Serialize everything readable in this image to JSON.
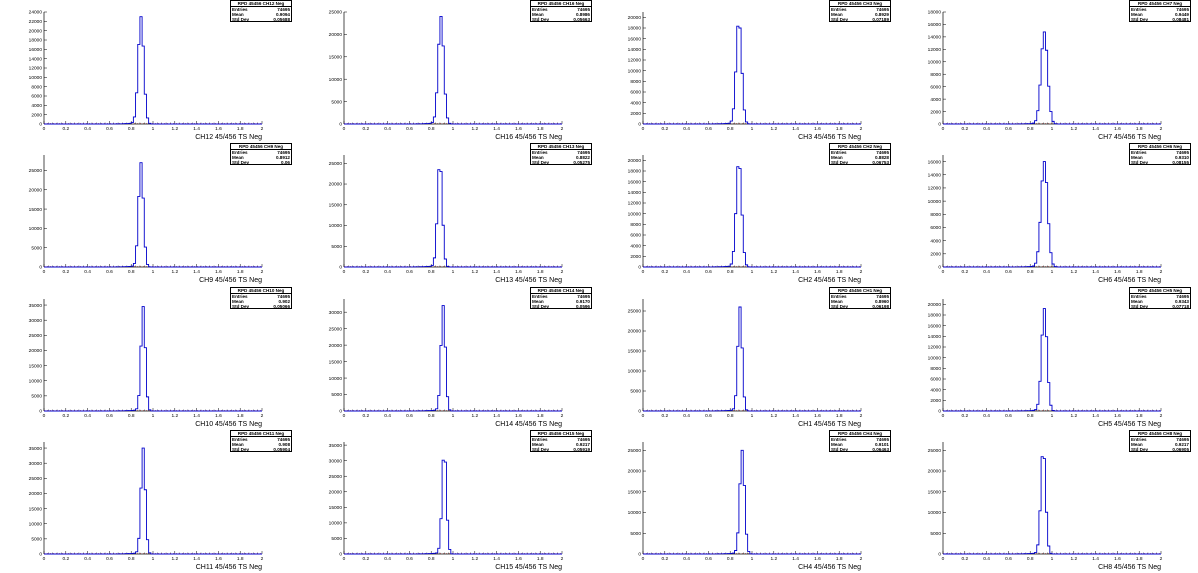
{
  "colors": {
    "histogram": "#0000cc",
    "axis": "#000000",
    "background": "#ffffff",
    "faint_line": "#cc3333"
  },
  "stats_labels": {
    "entries": "Entries",
    "mean": "Mean",
    "std": "Std Dev"
  },
  "chart_data": [
    {
      "type": "bar",
      "title": "RPD 45456 CH12 Neg",
      "xlabel": "CH12 45/456 TS Neg",
      "xlim": [
        0,
        2
      ],
      "ylim": [
        0,
        24000
      ],
      "xticks": [
        "0",
        "0.2",
        "0.4",
        "0.6",
        "0.8",
        "1",
        "1.2",
        "1.4",
        "1.6",
        "1.8",
        "2"
      ],
      "yticks": [
        "0",
        "2000",
        "4000",
        "6000",
        "8000",
        "10000",
        "12000",
        "14000",
        "16000",
        "18000",
        "20000",
        "22000",
        "24000"
      ],
      "stats": {
        "entries": "74695",
        "mean": "0.9094",
        "std": "0.05688"
      },
      "peak": 23000,
      "peak_x": 0.89,
      "width": 0.025
    },
    {
      "type": "bar",
      "title": "RPD 45456 CH16 Neg",
      "xlabel": "CH16 45/456 TS Neg",
      "xlim": [
        0,
        2
      ],
      "ylim": [
        0,
        25000
      ],
      "xticks": [
        "0",
        "0.2",
        "0.4",
        "0.6",
        "0.8",
        "1",
        "1.2",
        "1.4",
        "1.6",
        "1.8",
        "2"
      ],
      "yticks": [
        "0",
        "5000",
        "10000",
        "15000",
        "20000",
        "25000"
      ],
      "stats": {
        "entries": "74695",
        "mean": "0.8986",
        "std": "0.05663"
      },
      "peak": 24000,
      "peak_x": 0.89,
      "width": 0.025
    },
    {
      "type": "bar",
      "title": "RPD 45456 CH3 Neg",
      "xlabel": "CH3 45/456 TS Neg",
      "xlim": [
        0,
        2
      ],
      "ylim": [
        0,
        21000
      ],
      "xticks": [
        "0",
        "0.2",
        "0.4",
        "0.6",
        "0.8",
        "1",
        "1.2",
        "1.4",
        "1.6",
        "1.8",
        "2"
      ],
      "yticks": [
        "0",
        "2000",
        "4000",
        "6000",
        "8000",
        "10000",
        "12000",
        "14000",
        "16000",
        "18000",
        "20000"
      ],
      "stats": {
        "entries": "74695",
        "mean": "0.8929",
        "std": "0.07189"
      },
      "peak": 19500,
      "peak_x": 0.88,
      "width": 0.025
    },
    {
      "type": "bar",
      "title": "RPD 45456 CH7 Neg",
      "xlabel": "CH7 45/456 TS Neg",
      "xlim": [
        0,
        2
      ],
      "ylim": [
        0,
        18000
      ],
      "xticks": [
        "0",
        "0.2",
        "0.4",
        "0.6",
        "0.8",
        "1",
        "1.2",
        "1.4",
        "1.6",
        "1.8",
        "2"
      ],
      "yticks": [
        "0",
        "2000",
        "4000",
        "6000",
        "8000",
        "10000",
        "12000",
        "14000",
        "16000",
        "18000"
      ],
      "stats": {
        "entries": "74695",
        "mean": "0.9449",
        "std": "0.08481"
      },
      "peak": 14800,
      "peak_x": 0.93,
      "width": 0.03
    },
    {
      "type": "bar",
      "title": "RPD 45456 CH9 Neg",
      "xlabel": "CH9 45/456 TS Neg",
      "xlim": [
        0,
        2
      ],
      "ylim": [
        0,
        29000
      ],
      "xticks": [
        "0",
        "0.2",
        "0.4",
        "0.6",
        "0.8",
        "1",
        "1.2",
        "1.4",
        "1.6",
        "1.8",
        "2"
      ],
      "yticks": [
        "0",
        "5000",
        "10000",
        "15000",
        "20000",
        "25000"
      ],
      "stats": {
        "entries": "74695",
        "mean": "0.8912",
        "std": "0.06"
      },
      "peak": 27000,
      "peak_x": 0.89,
      "width": 0.022
    },
    {
      "type": "bar",
      "title": "RPD 45456 CH13 Neg",
      "xlabel": "CH13 45/456 TS Neg",
      "xlim": [
        0,
        2
      ],
      "ylim": [
        0,
        27000
      ],
      "xticks": [
        "0",
        "0.2",
        "0.4",
        "0.6",
        "0.8",
        "1",
        "1.2",
        "1.4",
        "1.6",
        "1.8",
        "2"
      ],
      "yticks": [
        "0",
        "5000",
        "10000",
        "15000",
        "20000",
        "25000"
      ],
      "stats": {
        "entries": "74695",
        "mean": "0.8822",
        "std": "0.05275"
      },
      "peak": 25500,
      "peak_x": 0.88,
      "width": 0.022
    },
    {
      "type": "bar",
      "title": "RPD 45456 CH2 Neg",
      "xlabel": "CH2 45/456 TS Neg",
      "xlim": [
        0,
        2
      ],
      "ylim": [
        0,
        21000
      ],
      "xticks": [
        "0",
        "0.2",
        "0.4",
        "0.6",
        "0.8",
        "1",
        "1.2",
        "1.4",
        "1.6",
        "1.8",
        "2"
      ],
      "yticks": [
        "0",
        "2000",
        "4000",
        "6000",
        "8000",
        "10000",
        "12000",
        "14000",
        "16000",
        "18000",
        "20000"
      ],
      "stats": {
        "entries": "74695",
        "mean": "0.8828",
        "std": "0.06753"
      },
      "peak": 20000,
      "peak_x": 0.88,
      "width": 0.025
    },
    {
      "type": "bar",
      "title": "RPD 45456 CH6 Neg",
      "xlabel": "CH6 45/456 TS Neg",
      "xlim": [
        0,
        2
      ],
      "ylim": [
        0,
        17000
      ],
      "xticks": [
        "0",
        "0.2",
        "0.4",
        "0.6",
        "0.8",
        "1",
        "1.2",
        "1.4",
        "1.6",
        "1.8",
        "2"
      ],
      "yticks": [
        "0",
        "2000",
        "4000",
        "6000",
        "8000",
        "10000",
        "12000",
        "14000",
        "16000"
      ],
      "stats": {
        "entries": "74695",
        "mean": "0.9310",
        "std": "0.08155"
      },
      "peak": 16000,
      "peak_x": 0.93,
      "width": 0.03
    },
    {
      "type": "bar",
      "title": "RPD 45456 CH10 Neg",
      "xlabel": "CH10 45/456 TS Neg",
      "xlim": [
        0,
        2
      ],
      "ylim": [
        0,
        37000
      ],
      "xticks": [
        "0",
        "0.2",
        "0.4",
        "0.6",
        "0.8",
        "1",
        "1.2",
        "1.4",
        "1.6",
        "1.8",
        "2"
      ],
      "yticks": [
        "0",
        "5000",
        "10000",
        "15000",
        "20000",
        "25000",
        "30000",
        "35000"
      ],
      "stats": {
        "entries": "74695",
        "mean": "0.902",
        "std": "0.05066"
      },
      "peak": 34500,
      "peak_x": 0.91,
      "width": 0.02
    },
    {
      "type": "bar",
      "title": "RPD 45456 CH14 Neg",
      "xlabel": "CH14 45/456 TS Neg",
      "xlim": [
        0,
        2
      ],
      "ylim": [
        0,
        34000
      ],
      "xticks": [
        "0",
        "0.2",
        "0.4",
        "0.6",
        "0.8",
        "1",
        "1.2",
        "1.4",
        "1.6",
        "1.8",
        "2"
      ],
      "yticks": [
        "0",
        "5000",
        "10000",
        "15000",
        "20000",
        "25000",
        "30000"
      ],
      "stats": {
        "entries": "74695",
        "mean": "0.9170",
        "std": "0.0596"
      },
      "peak": 32000,
      "peak_x": 0.91,
      "width": 0.02
    },
    {
      "type": "bar",
      "title": "RPD 45456 CH1 Neg",
      "xlabel": "CH1 45/456 TS Neg",
      "xlim": [
        0,
        2
      ],
      "ylim": [
        0,
        28000
      ],
      "xticks": [
        "0",
        "0.2",
        "0.4",
        "0.6",
        "0.8",
        "1",
        "1.2",
        "1.4",
        "1.6",
        "1.8",
        "2"
      ],
      "yticks": [
        "0",
        "5000",
        "10000",
        "15000",
        "20000",
        "25000"
      ],
      "stats": {
        "entries": "74695",
        "mean": "0.8960",
        "std": "0.06198"
      },
      "peak": 26000,
      "peak_x": 0.89,
      "width": 0.02
    },
    {
      "type": "bar",
      "title": "RPD 45456 CH5 Neg",
      "xlabel": "CH5 45/456 TS Neg",
      "xlim": [
        0,
        2
      ],
      "ylim": [
        0,
        21000
      ],
      "xticks": [
        "0",
        "0.2",
        "0.4",
        "0.6",
        "0.8",
        "1",
        "1.2",
        "1.4",
        "1.6",
        "1.8",
        "2"
      ],
      "yticks": [
        "0",
        "2000",
        "4000",
        "6000",
        "8000",
        "10000",
        "12000",
        "14000",
        "16000",
        "18000",
        "20000"
      ],
      "stats": {
        "entries": "74695",
        "mean": "0.9343",
        "std": "0.07718"
      },
      "peak": 19200,
      "peak_x": 0.93,
      "width": 0.025
    },
    {
      "type": "bar",
      "title": "RPD 45456 CH11 Neg",
      "xlabel": "CH11 45/456 TS Neg",
      "xlim": [
        0,
        2
      ],
      "ylim": [
        0,
        37000
      ],
      "xticks": [
        "0",
        "0.2",
        "0.4",
        "0.6",
        "0.8",
        "1",
        "1.2",
        "1.4",
        "1.6",
        "1.8",
        "2"
      ],
      "yticks": [
        "0",
        "5000",
        "10000",
        "15000",
        "20000",
        "25000",
        "30000",
        "35000"
      ],
      "stats": {
        "entries": "74695",
        "mean": "0.908",
        "std": "0.05904"
      },
      "peak": 35000,
      "peak_x": 0.91,
      "width": 0.02
    },
    {
      "type": "bar",
      "title": "RPD 45456 CH15 Neg",
      "xlabel": "CH15 45/456 TS Neg",
      "xlim": [
        0,
        2
      ],
      "ylim": [
        0,
        36000
      ],
      "xticks": [
        "0",
        "0.2",
        "0.4",
        "0.6",
        "0.8",
        "1",
        "1.2",
        "1.4",
        "1.6",
        "1.8",
        "2"
      ],
      "yticks": [
        "0",
        "5000",
        "10000",
        "15000",
        "20000",
        "25000",
        "30000",
        "35000"
      ],
      "stats": {
        "entries": "74695",
        "mean": "0.9217",
        "std": "0.05919"
      },
      "peak": 33500,
      "peak_x": 0.92,
      "width": 0.02
    },
    {
      "type": "bar",
      "title": "RPD 45456 CH4 Neg",
      "xlabel": "CH4 45/456 TS Neg",
      "xlim": [
        0,
        2
      ],
      "ylim": [
        0,
        27000
      ],
      "xticks": [
        "0",
        "0.2",
        "0.4",
        "0.6",
        "0.8",
        "1",
        "1.2",
        "1.4",
        "1.6",
        "1.8",
        "2"
      ],
      "yticks": [
        "0",
        "5000",
        "10000",
        "15000",
        "20000",
        "25000"
      ],
      "stats": {
        "entries": "74695",
        "mean": "0.9101",
        "std": "0.06463"
      },
      "peak": 25000,
      "peak_x": 0.91,
      "width": 0.022
    },
    {
      "type": "bar",
      "title": "RPD 45456 CH8 Neg",
      "xlabel": "CH8 45/456 TS Neg",
      "xlim": [
        0,
        2
      ],
      "ylim": [
        0,
        27000
      ],
      "xticks": [
        "0",
        "0.2",
        "0.4",
        "0.6",
        "0.8",
        "1",
        "1.2",
        "1.4",
        "1.6",
        "1.8",
        "2"
      ],
      "yticks": [
        "0",
        "5000",
        "10000",
        "15000",
        "20000",
        "25000"
      ],
      "stats": {
        "entries": "74695",
        "mean": "0.9217",
        "std": "0.06905"
      },
      "peak": 25500,
      "peak_x": 0.92,
      "width": 0.022
    }
  ]
}
